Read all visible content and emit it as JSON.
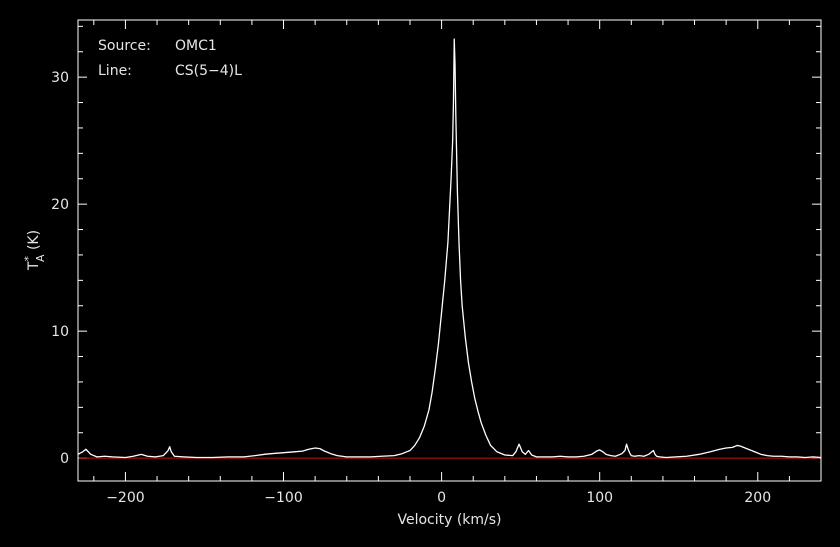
{
  "chart_data": {
    "type": "line",
    "xlabel": "Velocity (km/s)",
    "ylabel": {
      "base": "T",
      "superscript": "*",
      "subscript": "A",
      "unit": " (K)"
    },
    "xlim": [
      -230,
      240
    ],
    "ylim": [
      -1.8,
      34.5
    ],
    "xticks": [
      -200,
      -100,
      0,
      100,
      200
    ],
    "xtick_labels": [
      "−200",
      "−100",
      "0",
      "100",
      "200"
    ],
    "yticks": [
      0,
      10,
      20,
      30
    ],
    "ytick_labels": [
      "0",
      "10",
      "20",
      "30"
    ],
    "grid": false,
    "background_color": "#000000",
    "line_color": "#ffffff",
    "baseline": {
      "value": 0,
      "color": "#cc1111"
    },
    "annotations": [
      {
        "label": "Source:",
        "value": "OMC1"
      },
      {
        "label": "Line:",
        "value": "CS(5−4)L"
      }
    ],
    "series": [
      {
        "x": [
          -230,
          -227,
          -225,
          -222,
          -218,
          -213,
          -208,
          -200,
          -195,
          -190,
          -186,
          -181,
          -176,
          -173,
          -172,
          -171,
          -169,
          -163,
          -155,
          -145,
          -135,
          -125,
          -118,
          -112,
          -108,
          -103,
          -98,
          -93,
          -88,
          -84,
          -80,
          -77,
          -74,
          -70,
          -66,
          -60,
          -52,
          -45,
          -38,
          -30,
          -25,
          -20,
          -17,
          -14,
          -11,
          -8,
          -6,
          -4,
          -2,
          0,
          2,
          4,
          5,
          6,
          7,
          7.5,
          8,
          8.5,
          9,
          9.5,
          10,
          11,
          12,
          13,
          15,
          17,
          19,
          21,
          23,
          25,
          28,
          31,
          35,
          40,
          45,
          47,
          49,
          51,
          53,
          55,
          57,
          60,
          65,
          70,
          75,
          80,
          85,
          90,
          95,
          98,
          100,
          102,
          104,
          107,
          110,
          114,
          116,
          117,
          118,
          119,
          120,
          122,
          125,
          128,
          131,
          133,
          134,
          135,
          136,
          138,
          142,
          148,
          155,
          163,
          170,
          176,
          180,
          184,
          187,
          189,
          191,
          194,
          198,
          202,
          206,
          210,
          215,
          220,
          225,
          230,
          235,
          240
        ],
        "y": [
          0.3,
          0.5,
          0.7,
          0.3,
          0.1,
          0.15,
          0.1,
          0.05,
          0.15,
          0.3,
          0.15,
          0.1,
          0.2,
          0.6,
          0.9,
          0.5,
          0.15,
          0.1,
          0.05,
          0.05,
          0.1,
          0.1,
          0.2,
          0.3,
          0.35,
          0.4,
          0.45,
          0.5,
          0.55,
          0.7,
          0.8,
          0.75,
          0.55,
          0.35,
          0.2,
          0.1,
          0.1,
          0.1,
          0.15,
          0.2,
          0.35,
          0.6,
          1.0,
          1.6,
          2.5,
          3.8,
          5.2,
          7.0,
          9.0,
          11.5,
          14.0,
          17.0,
          19.5,
          22.0,
          25.0,
          28.0,
          33.0,
          31.0,
          27.0,
          24.0,
          21.0,
          17.0,
          14.0,
          12.0,
          9.5,
          7.5,
          6.0,
          4.7,
          3.7,
          2.8,
          1.8,
          1.0,
          0.5,
          0.25,
          0.2,
          0.5,
          1.1,
          0.5,
          0.3,
          0.6,
          0.25,
          0.1,
          0.1,
          0.1,
          0.15,
          0.1,
          0.1,
          0.15,
          0.3,
          0.55,
          0.65,
          0.5,
          0.3,
          0.2,
          0.15,
          0.35,
          0.6,
          1.1,
          0.7,
          0.4,
          0.2,
          0.15,
          0.2,
          0.15,
          0.3,
          0.5,
          0.6,
          0.3,
          0.15,
          0.1,
          0.05,
          0.1,
          0.15,
          0.3,
          0.5,
          0.7,
          0.8,
          0.85,
          1.0,
          0.95,
          0.85,
          0.7,
          0.5,
          0.3,
          0.2,
          0.15,
          0.15,
          0.1,
          0.1,
          0.05,
          0.1,
          0.05
        ]
      }
    ]
  }
}
